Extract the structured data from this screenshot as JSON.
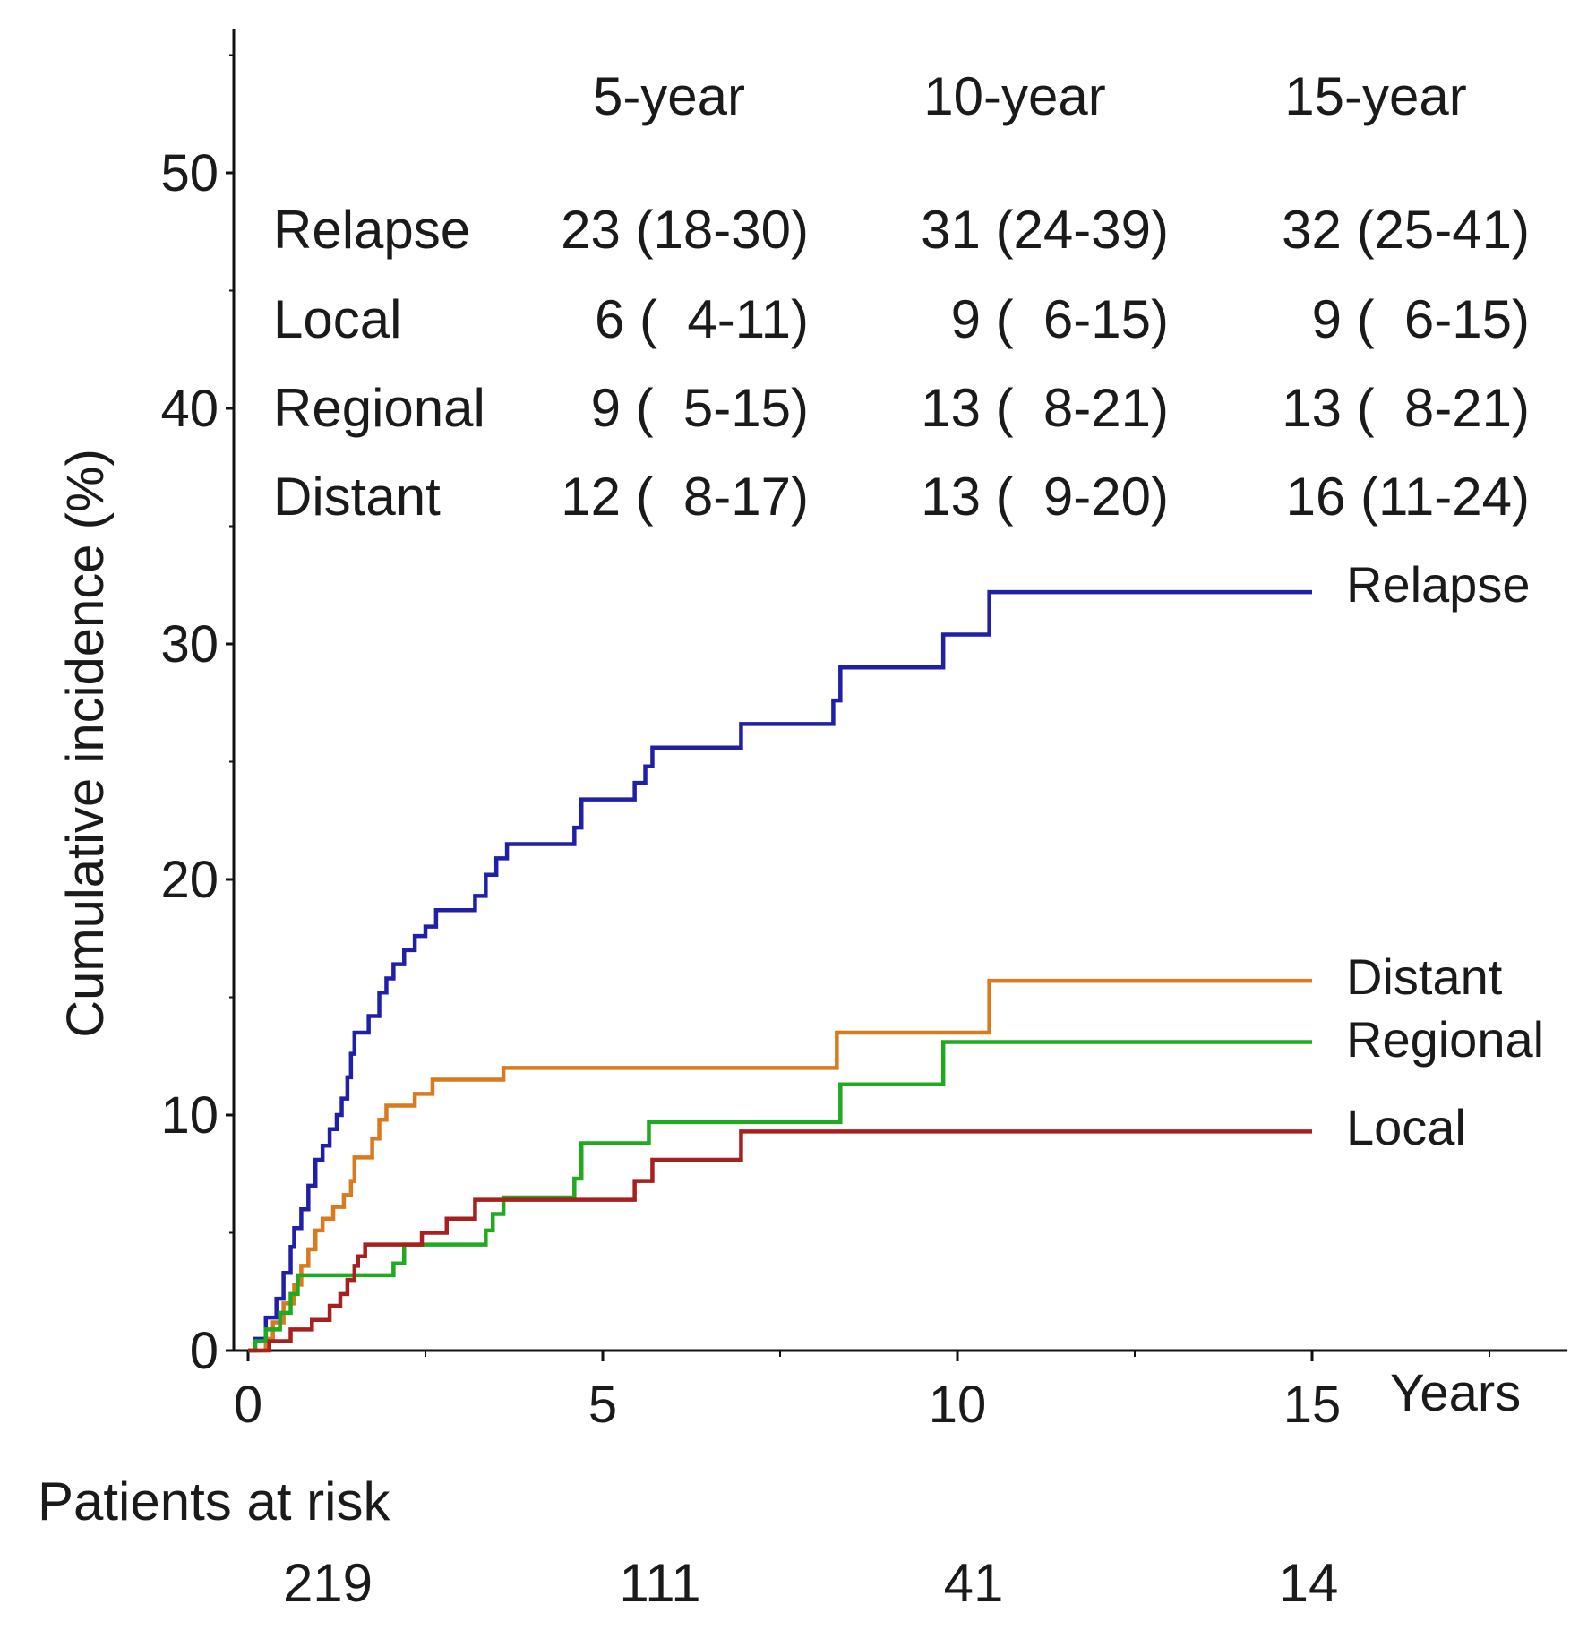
{
  "chart_data": {
    "type": "line",
    "ylabel": "Cumulative incidence (%)",
    "xlabel": "Years",
    "xlim": [
      0,
      18.6
    ],
    "ylim": [
      0,
      56
    ],
    "x_ticks": [
      0,
      5,
      10,
      15
    ],
    "y_ticks": [
      0,
      10,
      20,
      30,
      40,
      50
    ],
    "incidence_table": {
      "headers": [
        "5-year",
        "10-year",
        "15-year"
      ],
      "rows": [
        {
          "name": "Relapse",
          "values": [
            "23 (18-30)",
            "31 (24-39)",
            "32 (25-41)"
          ]
        },
        {
          "name": "Local",
          "values": [
            "6 (  4-11)",
            "9 (  6-15)",
            "9 (  6-15)"
          ]
        },
        {
          "name": "Regional",
          "values": [
            "9 (  5-15)",
            "13 (  8-21)",
            "13 (  8-21)"
          ]
        },
        {
          "name": "Distant",
          "values": [
            "12 (  8-17)",
            "13 (  9-20)",
            "16 (11-24)"
          ]
        }
      ]
    },
    "patients_at_risk": {
      "label": "Patients at risk",
      "times": [
        0,
        5,
        10,
        15
      ],
      "counts": [
        "219",
        "111",
        "41",
        "14"
      ]
    },
    "series": [
      {
        "name": "Relapse",
        "color": "#1f1fa8",
        "steps": [
          [
            0,
            0
          ],
          [
            0.1,
            0.5
          ],
          [
            0.25,
            1.4
          ],
          [
            0.4,
            2.2
          ],
          [
            0.5,
            3.3
          ],
          [
            0.6,
            4.4
          ],
          [
            0.65,
            5.2
          ],
          [
            0.75,
            6.0
          ],
          [
            0.85,
            7.0
          ],
          [
            0.95,
            8.1
          ],
          [
            1.05,
            8.7
          ],
          [
            1.15,
            9.4
          ],
          [
            1.25,
            10.0
          ],
          [
            1.32,
            10.7
          ],
          [
            1.4,
            11.6
          ],
          [
            1.45,
            12.6
          ],
          [
            1.5,
            13.5
          ],
          [
            1.7,
            14.2
          ],
          [
            1.85,
            15.2
          ],
          [
            1.95,
            15.8
          ],
          [
            2.05,
            16.4
          ],
          [
            2.2,
            17.0
          ],
          [
            2.35,
            17.6
          ],
          [
            2.5,
            18.0
          ],
          [
            2.65,
            18.7
          ],
          [
            3.2,
            19.3
          ],
          [
            3.35,
            20.2
          ],
          [
            3.5,
            20.9
          ],
          [
            3.65,
            21.5
          ],
          [
            4.6,
            22.2
          ],
          [
            4.7,
            23.4
          ],
          [
            5.45,
            24.1
          ],
          [
            5.6,
            24.8
          ],
          [
            5.7,
            25.6
          ],
          [
            6.95,
            26.6
          ],
          [
            8.25,
            27.6
          ],
          [
            8.35,
            29.0
          ],
          [
            9.8,
            30.4
          ],
          [
            10.45,
            32.2
          ],
          [
            15,
            32.2
          ]
        ]
      },
      {
        "name": "Distant",
        "color": "#d97a1f",
        "steps": [
          [
            0,
            0
          ],
          [
            0.25,
            0.5
          ],
          [
            0.35,
            1.2
          ],
          [
            0.5,
            2.0
          ],
          [
            0.65,
            2.8
          ],
          [
            0.75,
            3.6
          ],
          [
            0.85,
            4.3
          ],
          [
            0.95,
            5.1
          ],
          [
            1.05,
            5.6
          ],
          [
            1.2,
            6.1
          ],
          [
            1.35,
            6.6
          ],
          [
            1.45,
            7.2
          ],
          [
            1.5,
            8.2
          ],
          [
            1.75,
            9.0
          ],
          [
            1.85,
            9.8
          ],
          [
            1.95,
            10.4
          ],
          [
            2.35,
            10.9
          ],
          [
            2.6,
            11.5
          ],
          [
            3.6,
            12.0
          ],
          [
            8.3,
            13.5
          ],
          [
            10.45,
            15.7
          ],
          [
            15,
            15.7
          ]
        ]
      },
      {
        "name": "Regional",
        "color": "#1faa1f",
        "steps": [
          [
            0,
            0
          ],
          [
            0.1,
            0.4
          ],
          [
            0.25,
            0.9
          ],
          [
            0.45,
            1.6
          ],
          [
            0.6,
            2.4
          ],
          [
            0.7,
            3.2
          ],
          [
            2.05,
            3.7
          ],
          [
            2.2,
            4.5
          ],
          [
            3.35,
            5.1
          ],
          [
            3.45,
            5.8
          ],
          [
            3.6,
            6.5
          ],
          [
            4.6,
            7.3
          ],
          [
            4.7,
            8.8
          ],
          [
            5.65,
            9.7
          ],
          [
            8.35,
            11.3
          ],
          [
            9.8,
            13.1
          ],
          [
            15,
            13.1
          ]
        ]
      },
      {
        "name": "Local",
        "color": "#a81f1f",
        "steps": [
          [
            0,
            0
          ],
          [
            0.3,
            0.4
          ],
          [
            0.6,
            0.9
          ],
          [
            0.9,
            1.3
          ],
          [
            1.15,
            1.9
          ],
          [
            1.3,
            2.4
          ],
          [
            1.4,
            3.0
          ],
          [
            1.5,
            3.6
          ],
          [
            1.55,
            4.0
          ],
          [
            1.65,
            4.5
          ],
          [
            2.45,
            5.0
          ],
          [
            2.8,
            5.6
          ],
          [
            3.2,
            6.4
          ],
          [
            5.45,
            7.2
          ],
          [
            5.7,
            8.1
          ],
          [
            6.95,
            9.3
          ],
          [
            15,
            9.3
          ]
        ]
      }
    ]
  }
}
